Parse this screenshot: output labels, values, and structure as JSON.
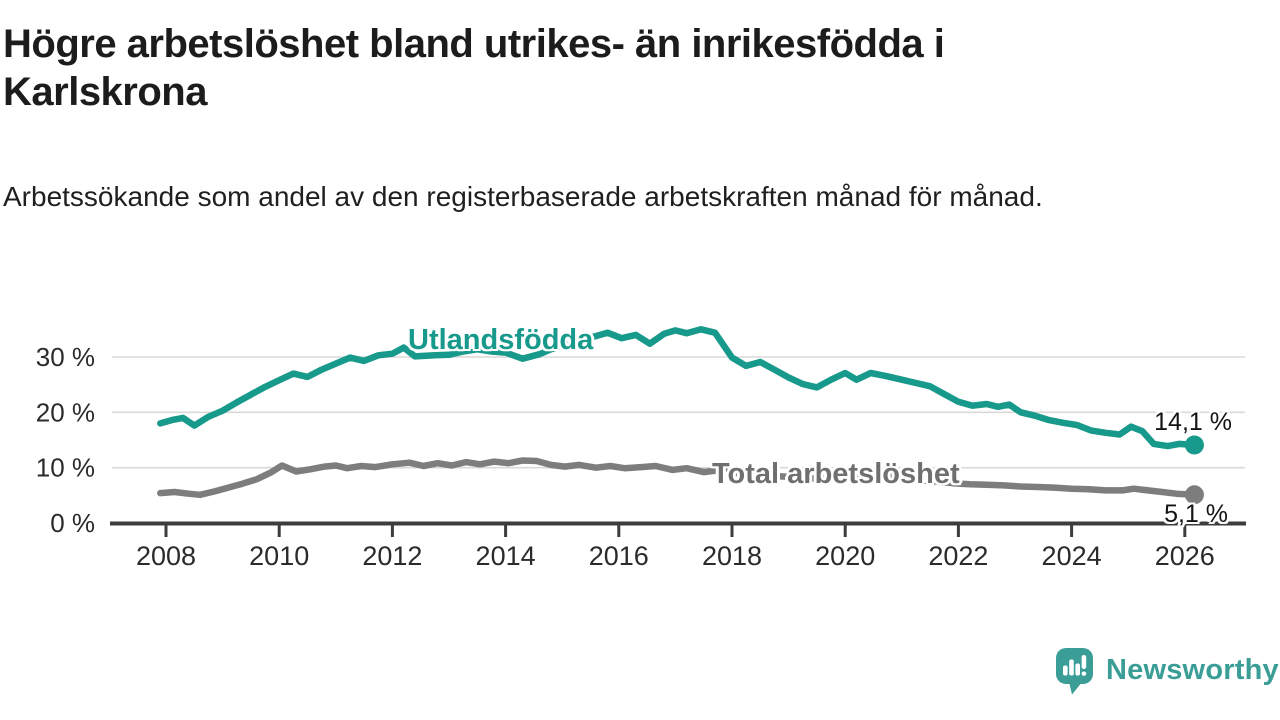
{
  "header": {
    "title": "Högre arbetslöshet bland utrikes- än inrikesfödda i Karlskrona",
    "subtitle": "Arbetssökande som andel av den registerbaserade arbetskraften månad för månad."
  },
  "chart_data": {
    "type": "line",
    "title": "Högre arbetslöshet bland utrikes- än inrikesfödda i Karlskrona",
    "xlabel": "",
    "ylabel": "Arbetssökande som andel av den registerbaserade arbetskraften",
    "x_axis": {
      "ticks": [
        2008,
        2010,
        2012,
        2014,
        2016,
        2018,
        2020,
        2022,
        2024,
        2026
      ],
      "range": [
        2007.85,
        2027.1
      ]
    },
    "y_axis": {
      "unit": "%",
      "ticks": [
        {
          "value": 0,
          "label": "0 %"
        },
        {
          "value": 10,
          "label": "10 %"
        },
        {
          "value": 20,
          "label": "20 %"
        },
        {
          "value": 30,
          "label": "30 %"
        }
      ],
      "range": [
        0,
        36
      ],
      "gridlines": true
    },
    "legend_position": "inline-labels",
    "series": [
      {
        "id": "utlandsfodda",
        "name": "Utlandsfödda",
        "color": "#17998b",
        "end_value": 14.1,
        "end_label": "14,1 %",
        "points": [
          [
            2007.9,
            18.0
          ],
          [
            2008.1,
            18.6
          ],
          [
            2008.3,
            19.0
          ],
          [
            2008.5,
            17.6
          ],
          [
            2008.75,
            19.2
          ],
          [
            2009.0,
            20.3
          ],
          [
            2009.25,
            21.8
          ],
          [
            2009.5,
            23.2
          ],
          [
            2009.75,
            24.6
          ],
          [
            2010.0,
            25.8
          ],
          [
            2010.25,
            27.0
          ],
          [
            2010.5,
            26.4
          ],
          [
            2010.75,
            27.7
          ],
          [
            2011.0,
            28.8
          ],
          [
            2011.25,
            29.9
          ],
          [
            2011.5,
            29.3
          ],
          [
            2011.75,
            30.3
          ],
          [
            2012.0,
            30.6
          ],
          [
            2012.2,
            31.7
          ],
          [
            2012.4,
            30.1
          ],
          [
            2012.75,
            30.3
          ],
          [
            2013.0,
            30.4
          ],
          [
            2013.25,
            31.0
          ],
          [
            2013.5,
            31.4
          ],
          [
            2013.75,
            31.0
          ],
          [
            2014.0,
            30.8
          ],
          [
            2014.3,
            29.7
          ],
          [
            2014.6,
            30.5
          ],
          [
            2014.8,
            31.4
          ],
          [
            2015.0,
            32.1
          ],
          [
            2015.25,
            32.7
          ],
          [
            2015.5,
            33.5
          ],
          [
            2015.8,
            34.4
          ],
          [
            2016.05,
            33.4
          ],
          [
            2016.3,
            34.0
          ],
          [
            2016.55,
            32.4
          ],
          [
            2016.8,
            34.2
          ],
          [
            2017.0,
            34.8
          ],
          [
            2017.2,
            34.3
          ],
          [
            2017.45,
            35.0
          ],
          [
            2017.7,
            34.4
          ],
          [
            2018.0,
            29.9
          ],
          [
            2018.25,
            28.4
          ],
          [
            2018.5,
            29.1
          ],
          [
            2018.75,
            27.7
          ],
          [
            2019.0,
            26.3
          ],
          [
            2019.25,
            25.1
          ],
          [
            2019.5,
            24.5
          ],
          [
            2019.75,
            25.9
          ],
          [
            2020.0,
            27.1
          ],
          [
            2020.2,
            25.9
          ],
          [
            2020.45,
            27.1
          ],
          [
            2020.7,
            26.6
          ],
          [
            2021.0,
            25.9
          ],
          [
            2021.25,
            25.3
          ],
          [
            2021.5,
            24.7
          ],
          [
            2021.75,
            23.3
          ],
          [
            2022.0,
            21.9
          ],
          [
            2022.25,
            21.2
          ],
          [
            2022.5,
            21.5
          ],
          [
            2022.7,
            21.0
          ],
          [
            2022.9,
            21.4
          ],
          [
            2023.1,
            20.0
          ],
          [
            2023.35,
            19.4
          ],
          [
            2023.6,
            18.6
          ],
          [
            2023.85,
            18.1
          ],
          [
            2024.1,
            17.7
          ],
          [
            2024.35,
            16.7
          ],
          [
            2024.6,
            16.3
          ],
          [
            2024.85,
            16.0
          ],
          [
            2025.05,
            17.4
          ],
          [
            2025.25,
            16.6
          ],
          [
            2025.45,
            14.3
          ],
          [
            2025.7,
            13.9
          ],
          [
            2025.9,
            14.3
          ],
          [
            2026.17,
            14.1
          ]
        ]
      },
      {
        "id": "total-arbetsloshet",
        "name": "Total arbetslöshet",
        "color": "#7d7d7d",
        "end_value": 5.1,
        "end_label": "5,1 %",
        "points": [
          [
            2007.9,
            5.4
          ],
          [
            2008.15,
            5.6
          ],
          [
            2008.4,
            5.3
          ],
          [
            2008.6,
            5.1
          ],
          [
            2008.85,
            5.7
          ],
          [
            2009.1,
            6.4
          ],
          [
            2009.35,
            7.1
          ],
          [
            2009.6,
            7.9
          ],
          [
            2009.85,
            9.1
          ],
          [
            2010.05,
            10.4
          ],
          [
            2010.3,
            9.3
          ],
          [
            2010.55,
            9.7
          ],
          [
            2010.8,
            10.2
          ],
          [
            2011.0,
            10.4
          ],
          [
            2011.2,
            9.9
          ],
          [
            2011.45,
            10.3
          ],
          [
            2011.7,
            10.1
          ],
          [
            2012.0,
            10.6
          ],
          [
            2012.3,
            10.9
          ],
          [
            2012.55,
            10.3
          ],
          [
            2012.8,
            10.8
          ],
          [
            2013.05,
            10.4
          ],
          [
            2013.3,
            11.0
          ],
          [
            2013.55,
            10.6
          ],
          [
            2013.8,
            11.1
          ],
          [
            2014.05,
            10.8
          ],
          [
            2014.3,
            11.3
          ],
          [
            2014.55,
            11.2
          ],
          [
            2014.8,
            10.5
          ],
          [
            2015.05,
            10.2
          ],
          [
            2015.3,
            10.5
          ],
          [
            2015.6,
            10.0
          ],
          [
            2015.85,
            10.3
          ],
          [
            2016.1,
            9.9
          ],
          [
            2016.4,
            10.1
          ],
          [
            2016.65,
            10.3
          ],
          [
            2016.95,
            9.6
          ],
          [
            2017.2,
            9.9
          ],
          [
            2017.5,
            9.2
          ],
          [
            2017.75,
            9.5
          ],
          [
            2018.0,
            9.1
          ],
          [
            2018.3,
            8.8
          ],
          [
            2018.6,
            8.6
          ],
          [
            2018.9,
            8.4
          ],
          [
            2019.2,
            8.2
          ],
          [
            2019.5,
            8.0
          ],
          [
            2019.8,
            8.2
          ],
          [
            2020.1,
            8.5
          ],
          [
            2020.4,
            8.8
          ],
          [
            2020.7,
            8.5
          ],
          [
            2021.0,
            8.1
          ],
          [
            2021.3,
            7.8
          ],
          [
            2021.6,
            7.5
          ],
          [
            2021.9,
            7.2
          ],
          [
            2022.2,
            7.0
          ],
          [
            2022.5,
            6.9
          ],
          [
            2022.8,
            6.8
          ],
          [
            2023.1,
            6.6
          ],
          [
            2023.4,
            6.5
          ],
          [
            2023.7,
            6.4
          ],
          [
            2024.0,
            6.2
          ],
          [
            2024.3,
            6.1
          ],
          [
            2024.6,
            5.9
          ],
          [
            2024.9,
            5.9
          ],
          [
            2025.1,
            6.2
          ],
          [
            2025.35,
            5.9
          ],
          [
            2025.6,
            5.6
          ],
          [
            2025.85,
            5.3
          ],
          [
            2026.17,
            5.1
          ]
        ]
      }
    ]
  },
  "footer": {
    "brand": "Newsworthy"
  },
  "colors": {
    "accent_teal": "#17998b",
    "logo_teal": "#3a9e96",
    "series_gray": "#7d7d7d",
    "axis": "#3d3d3d",
    "gridline": "#d9d9d9",
    "tick_text": "#2b2b2b"
  }
}
